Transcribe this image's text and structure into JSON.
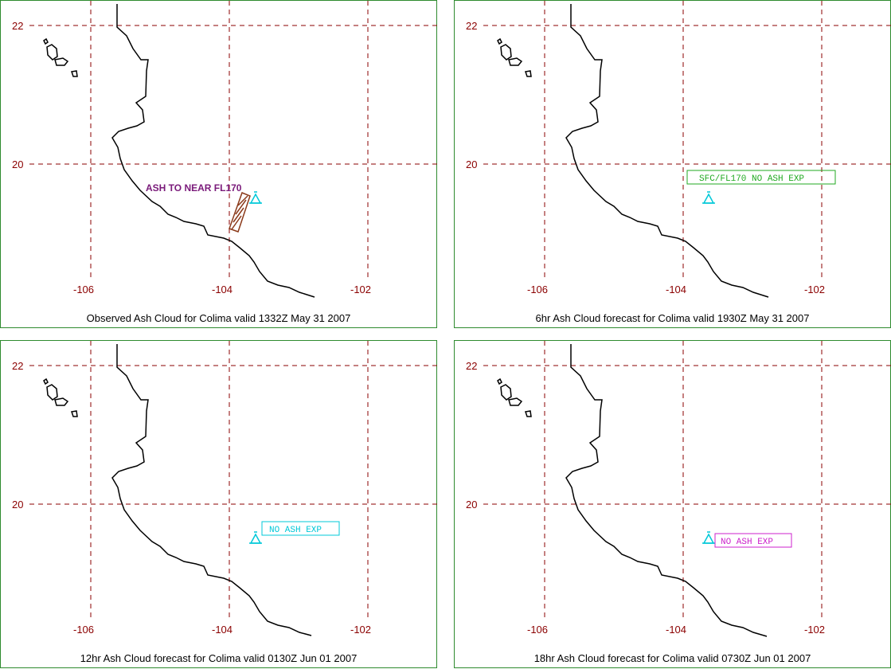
{
  "colors": {
    "frame": "#2e8b2e",
    "grid": "#8b0000",
    "coast": "#000000",
    "volcano": "#00c8d8"
  },
  "axes": {
    "latitudes": [
      "22",
      "20"
    ],
    "longitudes": [
      "-106",
      "-104",
      "-102"
    ]
  },
  "panels": [
    {
      "caption": "Observed Ash Cloud for Colima valid 1332Z May 31 2007",
      "note": "ASH TO NEAR FL170",
      "note_style": "plain",
      "note_color": "#7a1a7a",
      "ash_polygon": true
    },
    {
      "caption": "6hr Ash Cloud forecast for Colima valid 1930Z May 31 2007",
      "note": "SFC/FL170 NO ASH EXP",
      "note_style": "boxed",
      "note_color": "#22aa22",
      "ash_polygon": false
    },
    {
      "caption": "12hr Ash Cloud forecast for Colima valid 0130Z Jun 01 2007",
      "note": "NO ASH EXP",
      "note_style": "boxed",
      "note_color": "#00c8d8",
      "ash_polygon": false
    },
    {
      "caption": "18hr Ash Cloud forecast for Colima valid 0730Z Jun 01 2007",
      "note": "NO ASH EXP",
      "note_style": "boxed",
      "note_color": "#cc22cc",
      "ash_polygon": false
    }
  ]
}
